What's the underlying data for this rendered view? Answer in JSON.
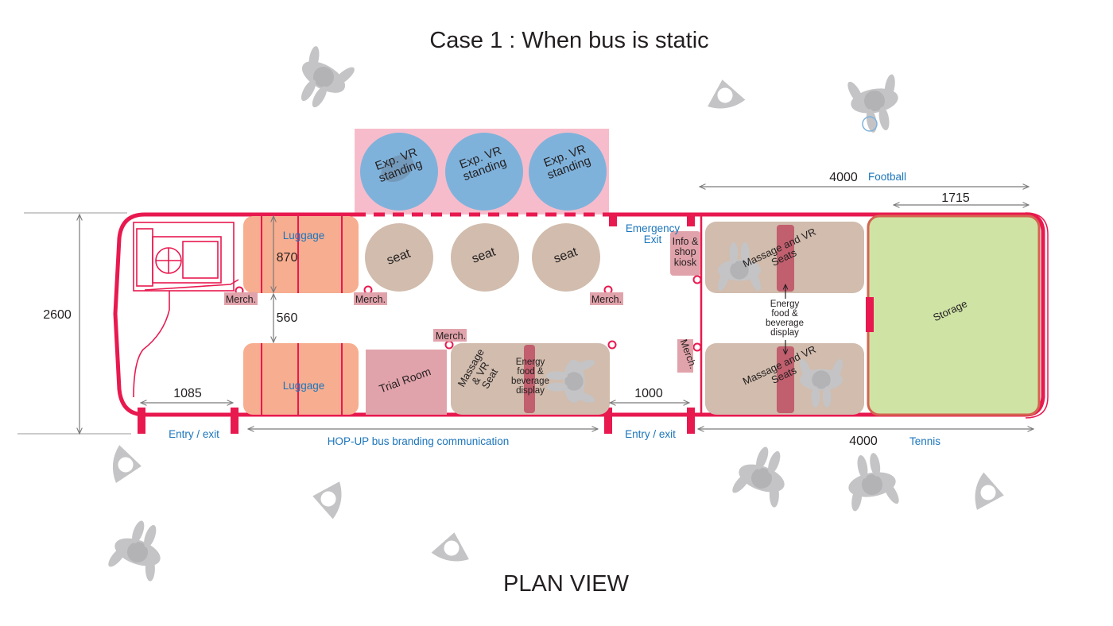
{
  "title": "Case 1 : When bus is static",
  "footer": "PLAN VIEW",
  "colors": {
    "bus_outline": "#e8194f",
    "luggage": "#f7ad8f",
    "seat": "#d1bcad",
    "vr_zone": "#f7bccb",
    "vr_circle": "#7fb2db",
    "storage": "#cfe3a5",
    "trial_room": "#e1a3ab",
    "people": "#c4c4c6",
    "dimension": "#7a7a7a",
    "label_blue": "#1b75bc"
  },
  "vr": {
    "labels": [
      "Exp. VR\nstanding",
      "Exp. VR\nstanding",
      "Exp. VR\nstanding"
    ]
  },
  "seats": [
    "seat",
    "seat",
    "seat"
  ],
  "zones": {
    "luggage_top": "Luggage",
    "luggage_bottom": "Luggage",
    "trial_room": "Trial Room",
    "massage_seat": "Massage\n& VR\nSeat",
    "energy_bottom": "Energy\nfood &\nbeverage\ndisplay",
    "info_kiosk": "Info &\nshop\nkiosk",
    "massage_top": "Massage and VR\nSeats",
    "massage_bottom": "Massage and VR\nSeats",
    "energy_middle": "Energy\nfood &\nbeverage\ndisplay",
    "storage": "Storage",
    "emergency_exit": "Emergency\nExit"
  },
  "merch": {
    "m1": "Merch.",
    "m2": "Merch.",
    "m3": "Merch.",
    "m4": "Merch.",
    "m5": "Merch."
  },
  "dimensions": {
    "height_total": "2600",
    "gap_1": "870",
    "gap_2": "560",
    "front_door": "1085",
    "mid_door": "1000",
    "top_span": "4000",
    "top_span_label": "Football",
    "storage_span": "1715",
    "bottom_span": "4000",
    "bottom_span_label": "Tennis"
  },
  "doors": {
    "front": "Entry / exit",
    "mid": "Entry / exit"
  },
  "branding": "HOP-UP bus branding communication"
}
